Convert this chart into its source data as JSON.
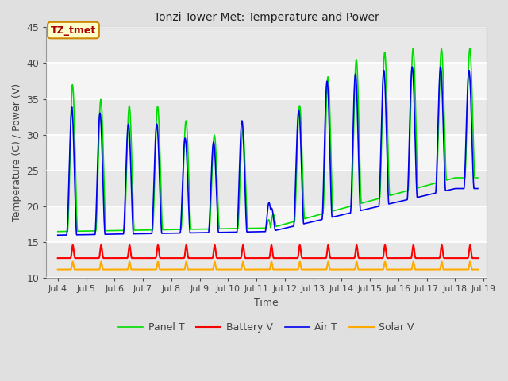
{
  "title": "Tonzi Tower Met: Temperature and Power",
  "xlabel": "Time",
  "ylabel": "Temperature (C) / Power (V)",
  "ylim": [
    10,
    45
  ],
  "xlim_days": [
    3.6,
    19.1
  ],
  "x_ticks": [
    4,
    5,
    6,
    7,
    8,
    9,
    10,
    11,
    12,
    13,
    14,
    15,
    16,
    17,
    18,
    19
  ],
  "x_tick_labels": [
    "Jul 4",
    "Jul 5",
    "Jul 6",
    "Jul 7",
    "Jul 8",
    "Jul 9",
    "Jul 10",
    "Jul 11",
    "Jul 12",
    "Jul 13",
    "Jul 14",
    "Jul 15",
    "Jul 16",
    "Jul 17",
    "Jul 18",
    "Jul 19"
  ],
  "fig_bg_color": "#e0e0e0",
  "plot_bg_color": "#ffffff",
  "band_color_dark": "#e8e8e8",
  "band_color_light": "#f5f5f5",
  "grid_color": "#ffffff",
  "panel_t_color": "#00dd00",
  "battery_v_color": "#ff0000",
  "air_t_color": "#0000ee",
  "solar_v_color": "#ffaa00",
  "annotation_text": "TZ_tmet",
  "annotation_color": "#aa0000",
  "annotation_bg": "#ffffcc",
  "annotation_border": "#cc8800",
  "legend_order": [
    "Panel T",
    "Battery V",
    "Air T",
    "Solar V"
  ]
}
